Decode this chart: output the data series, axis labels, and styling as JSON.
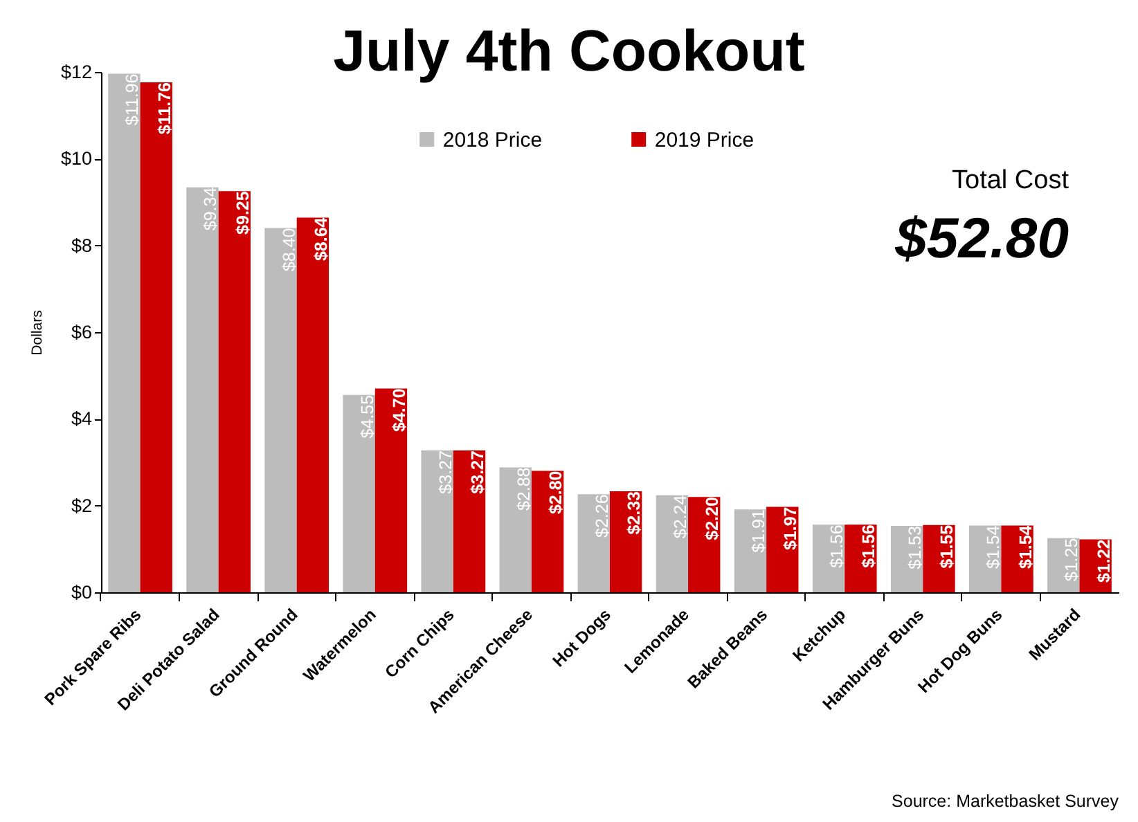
{
  "chart_data": {
    "type": "bar",
    "title": "July 4th Cookout",
    "ylabel": "Dollars",
    "categories": [
      "Pork Spare Ribs",
      "Deli Potato Salad",
      "Ground Round",
      "Watermelon",
      "Corn Chips",
      "American Cheese",
      "Hot Dogs",
      "Lemonade",
      "Baked Beans",
      "Ketchup",
      "Hamburger Buns",
      "Hot Dog Buns",
      "Mustard"
    ],
    "series": [
      {
        "name": "2018 Price",
        "color": "#bcbcbc",
        "values": [
          11.96,
          9.34,
          8.4,
          4.55,
          3.27,
          2.88,
          2.26,
          2.24,
          1.91,
          1.56,
          1.53,
          1.54,
          1.25
        ],
        "value_labels": [
          "$11.96",
          "$9.34",
          "$8.40",
          "$4.55",
          "$3.27",
          "$2.88",
          "$2.26",
          "$2.24",
          "$1.91",
          "$1.56",
          "$1.53",
          "$1.54",
          "$1.25"
        ]
      },
      {
        "name": "2019 Price",
        "color": "#cc0000",
        "values": [
          11.76,
          9.25,
          8.64,
          4.7,
          3.27,
          2.8,
          2.33,
          2.2,
          1.97,
          1.56,
          1.55,
          1.54,
          1.22
        ],
        "value_labels": [
          "$11.76",
          "$9.25",
          "$8.64",
          "$4.70",
          "$3.27",
          "$2.80",
          "$2.33",
          "$2.20",
          "$1.97",
          "$1.56",
          "$1.55",
          "$1.54",
          "$1.22"
        ]
      }
    ],
    "ylim": [
      0,
      12
    ],
    "yticks": [
      {
        "value": 0,
        "label": "$0"
      },
      {
        "value": 2,
        "label": "$2"
      },
      {
        "value": 4,
        "label": "$4"
      },
      {
        "value": 6,
        "label": "$6"
      },
      {
        "value": 8,
        "label": "$8"
      },
      {
        "value": 10,
        "label": "$10"
      },
      {
        "value": 12,
        "label": "$12"
      }
    ],
    "legend": "top",
    "grid": false,
    "annotations": [
      "Total Cost",
      "$52.80",
      "Source: Marketbasket Survey"
    ]
  }
}
